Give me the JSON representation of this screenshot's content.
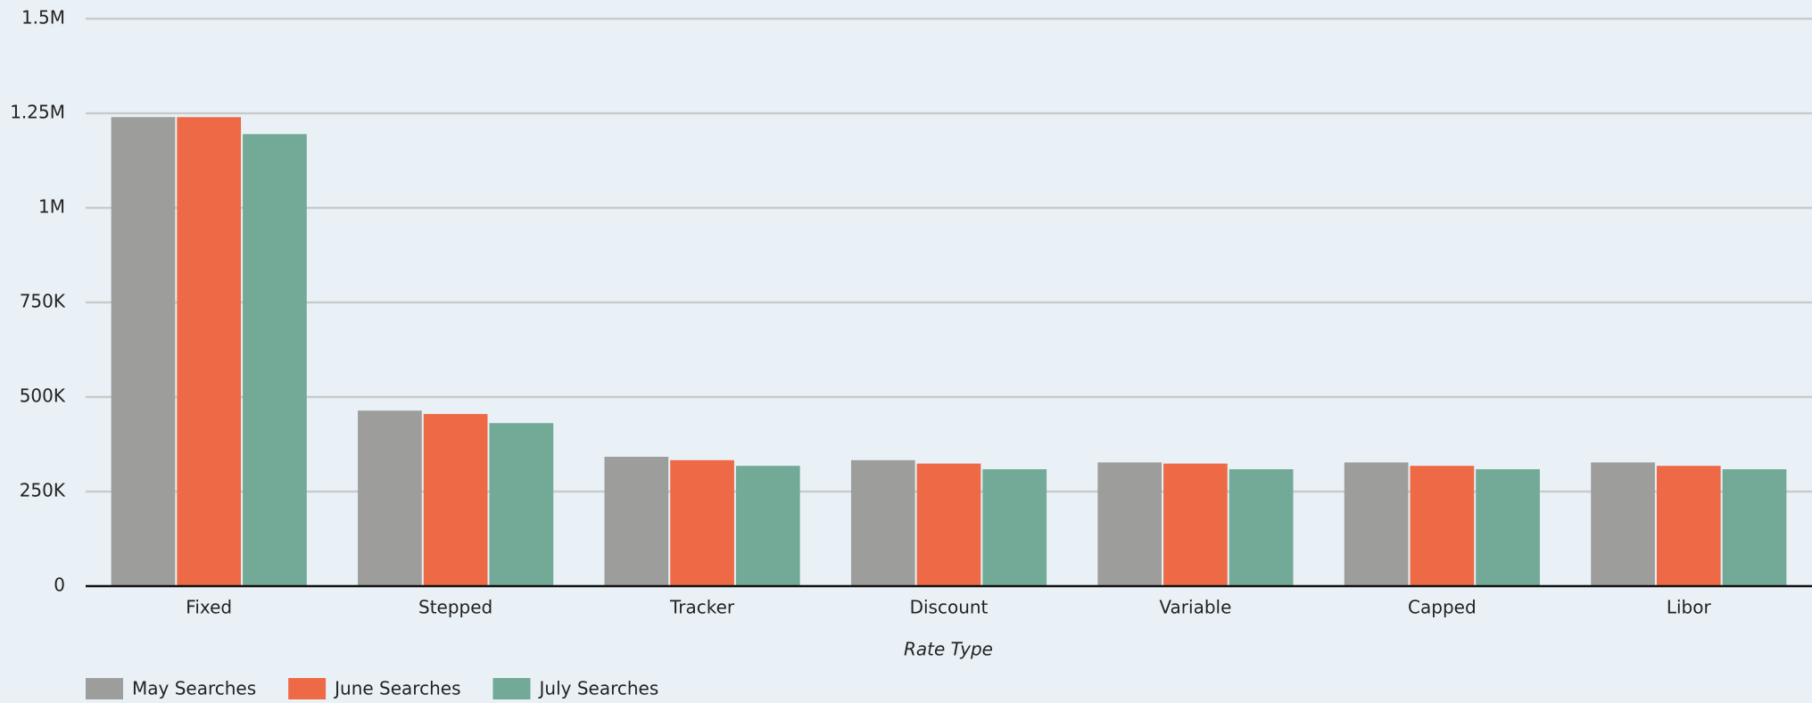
{
  "chart_data": {
    "type": "bar",
    "x_label": "Rate Type",
    "categories": [
      "Fixed",
      "Stepped",
      "Tracker",
      "Discount",
      "Variable",
      "Capped",
      "Libor"
    ],
    "series": [
      {
        "name": "May Searches",
        "color": "#9d9d9b",
        "values": [
          1240000,
          464000,
          342000,
          333000,
          327000,
          327000,
          327000
        ]
      },
      {
        "name": "June Searches",
        "color": "#ee6a47",
        "values": [
          1240000,
          455000,
          333000,
          324000,
          324000,
          318000,
          318000
        ]
      },
      {
        "name": "July Searches",
        "color": "#72a997",
        "values": [
          1195000,
          431000,
          318000,
          309000,
          309000,
          309000,
          309000
        ]
      }
    ],
    "ylim": [
      0,
      1500000
    ],
    "yticks": [
      0,
      {
        "value": 250000,
        "label": "250K"
      },
      {
        "value": 500000,
        "label": "500K"
      },
      {
        "value": 750000,
        "label": "750K"
      },
      {
        "value": 1000000,
        "label": "1M"
      },
      {
        "value": 1250000,
        "label": "1.25M"
      },
      {
        "value": 1500000,
        "label": "1.5M"
      }
    ],
    "grid": true,
    "legend": "bottom-left"
  }
}
